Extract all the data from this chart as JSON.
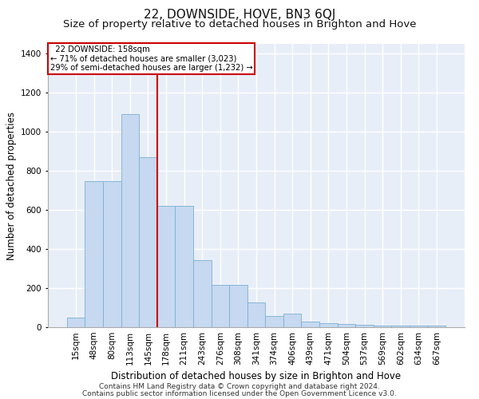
{
  "title": "22, DOWNSIDE, HOVE, BN3 6QJ",
  "subtitle": "Size of property relative to detached houses in Brighton and Hove",
  "xlabel": "Distribution of detached houses by size in Brighton and Hove",
  "ylabel": "Number of detached properties",
  "footnote1": "Contains HM Land Registry data © Crown copyright and database right 2024.",
  "footnote2": "Contains public sector information licensed under the Open Government Licence v3.0.",
  "annotation_line1": "  22 DOWNSIDE: 158sqm  ",
  "annotation_line2": "← 71% of detached houses are smaller (3,023)",
  "annotation_line3": "29% of semi-detached houses are larger (1,232) →",
  "categories": [
    "15sqm",
    "48sqm",
    "80sqm",
    "113sqm",
    "145sqm",
    "178sqm",
    "211sqm",
    "243sqm",
    "276sqm",
    "308sqm",
    "341sqm",
    "374sqm",
    "406sqm",
    "439sqm",
    "471sqm",
    "504sqm",
    "537sqm",
    "569sqm",
    "602sqm",
    "634sqm",
    "667sqm"
  ],
  "values": [
    50,
    748,
    748,
    1092,
    868,
    622,
    622,
    342,
    215,
    215,
    128,
    58,
    68,
    28,
    22,
    18,
    12,
    8,
    8,
    8,
    8
  ],
  "bar_color": "#c6d9f0",
  "bar_edge_color": "#7bafd4",
  "red_line_x": 4.5,
  "ylim": [
    0,
    1450
  ],
  "yticks": [
    0,
    200,
    400,
    600,
    800,
    1000,
    1200,
    1400
  ],
  "bg_color": "#e8eef8",
  "grid_color": "#ffffff",
  "annot_box_color": "#ffffff",
  "annot_box_edge": "#cc0000",
  "red_line_color": "#cc0000",
  "title_fontsize": 11,
  "subtitle_fontsize": 9.5,
  "axis_label_fontsize": 8.5,
  "tick_fontsize": 7.5,
  "footnote_fontsize": 6.5
}
